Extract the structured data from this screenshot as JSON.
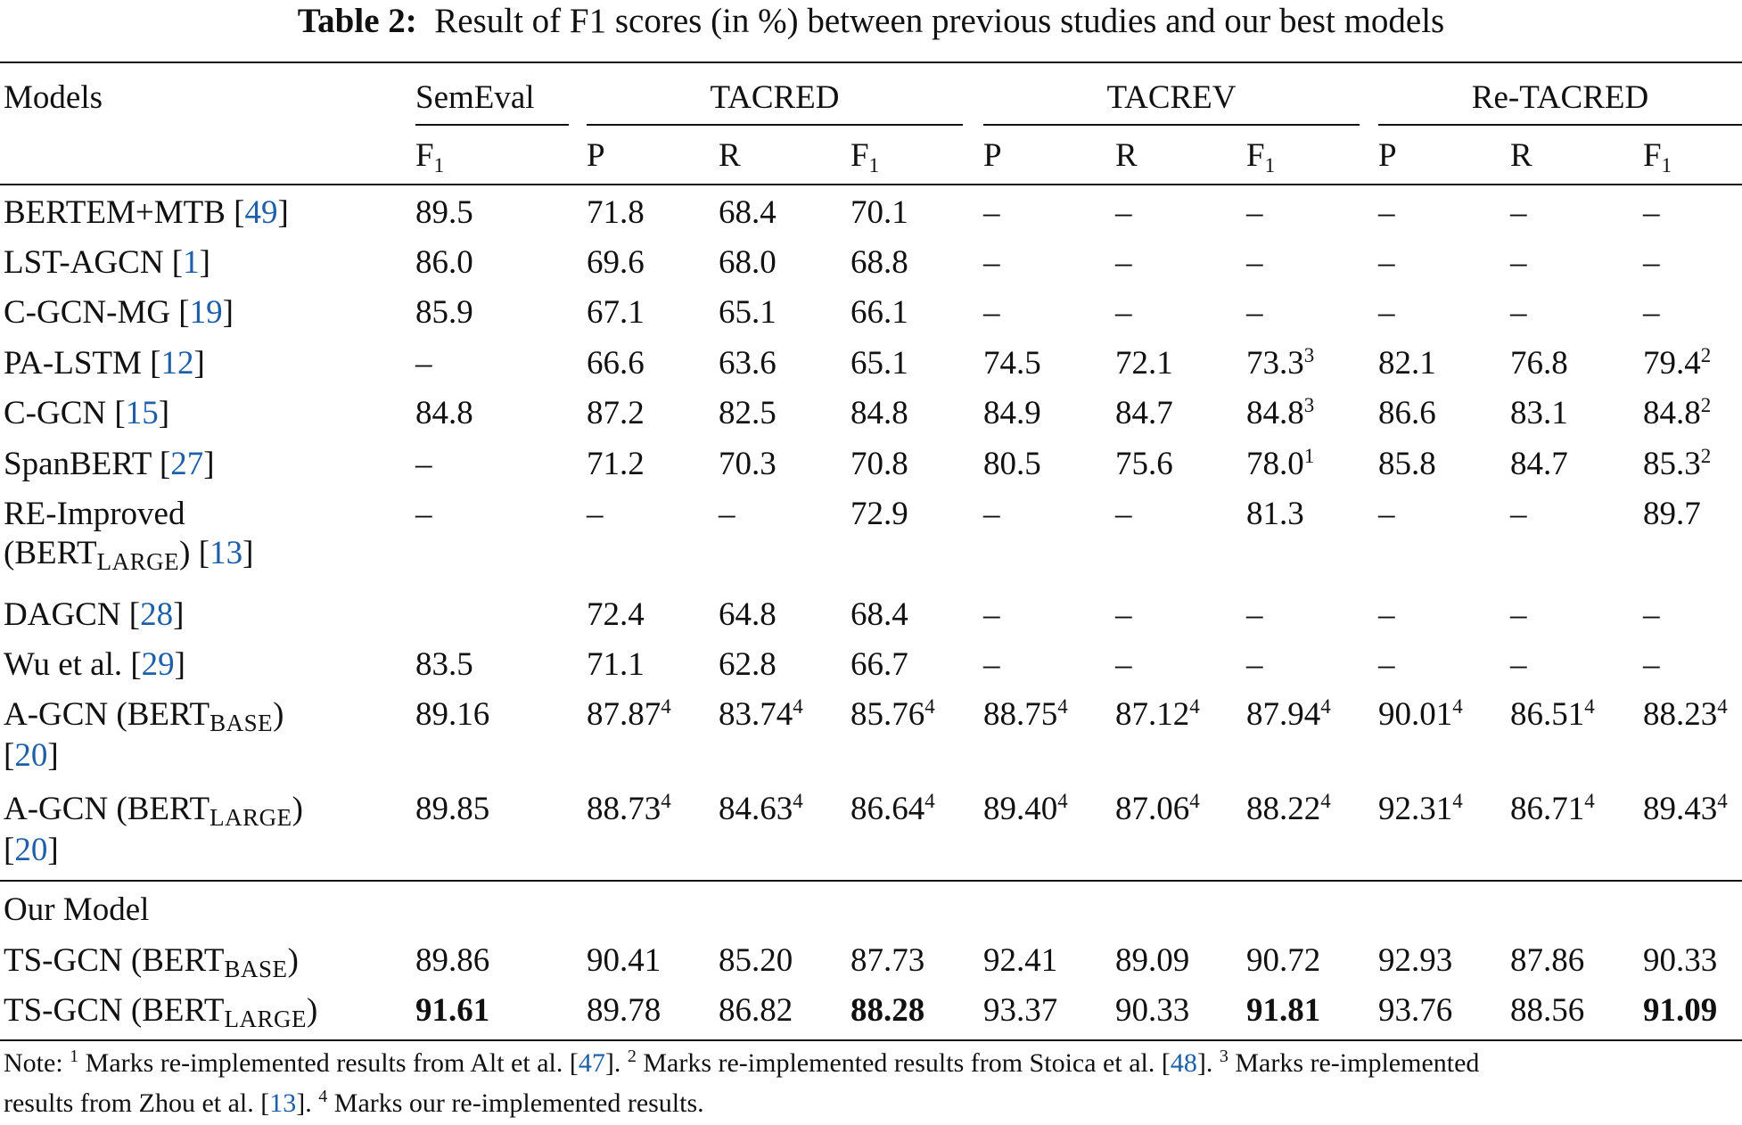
{
  "caption": {
    "label": "Table 2:",
    "text": "Result of F1 scores (in %) between previous studies and our best models"
  },
  "header": {
    "models": "Models",
    "groups": [
      "SemEval",
      "TACRED",
      "TACREV",
      "Re-TACRED"
    ],
    "metric_f": "F",
    "metric_f_sub": "1",
    "metric_p": "P",
    "metric_r": "R"
  },
  "rows": [
    {
      "name": "BERTEM+MTB [",
      "ref": "49",
      "close": "]",
      "values": [
        "89.5",
        "71.8",
        "68.4",
        "70.1",
        "–",
        "–",
        "–",
        "–",
        "–",
        "–"
      ]
    },
    {
      "name": "LST-AGCN [",
      "ref": "1",
      "close": "]",
      "values": [
        "86.0",
        "69.6",
        "68.0",
        "68.8",
        "–",
        "–",
        "–",
        "–",
        "–",
        "–"
      ]
    },
    {
      "name": "C-GCN-MG [",
      "ref": "19",
      "close": "]",
      "values": [
        "85.9",
        "67.1",
        "65.1",
        "66.1",
        "–",
        "–",
        "–",
        "–",
        "–",
        "–"
      ]
    },
    {
      "name": "PA-LSTM [",
      "ref": "12",
      "close": "]",
      "values": [
        "–",
        "66.6",
        "63.6",
        "65.1",
        "74.5",
        "72.1",
        "73.3",
        "82.1",
        "76.8",
        "79.4"
      ],
      "sups": [
        "",
        "",
        "",
        "",
        "",
        "",
        "3",
        "",
        "",
        "2"
      ]
    },
    {
      "name": "C-GCN [",
      "ref": "15",
      "close": "]",
      "values": [
        "84.8",
        "87.2",
        "82.5",
        "84.8",
        "84.9",
        "84.7",
        "84.8",
        "86.6",
        "83.1",
        "84.8"
      ],
      "sups": [
        "",
        "",
        "",
        "",
        "",
        "",
        "3",
        "",
        "",
        "2"
      ]
    },
    {
      "name": "SpanBERT [",
      "ref": "27",
      "close": "]",
      "values": [
        "–",
        "71.2",
        "70.3",
        "70.8",
        "80.5",
        "75.6",
        "78.0",
        "85.8",
        "84.7",
        "85.3"
      ],
      "sups": [
        "",
        "",
        "",
        "",
        "",
        "",
        "1",
        "",
        "",
        "2"
      ]
    },
    {
      "name": "RE-Improved",
      "line2_pre": "(BERT",
      "line2_sub": "LARGE",
      "line2_post": ") [",
      "ref": "13",
      "close": "]",
      "values": [
        "–",
        "–",
        "–",
        "72.9",
        "–",
        "–",
        "81.3",
        "–",
        "–",
        "89.7"
      ]
    },
    {
      "name": "DAGCN [",
      "ref": "28",
      "close": "]",
      "values": [
        "",
        "72.4",
        "64.8",
        "68.4",
        "–",
        "–",
        "–",
        "–",
        "–",
        "–"
      ]
    },
    {
      "name": "Wu et al. [",
      "ref": "29",
      "close": "]",
      "values": [
        "83.5",
        "71.1",
        "62.8",
        "66.7",
        "–",
        "–",
        "–",
        "–",
        "–",
        "–"
      ]
    },
    {
      "name": "A-GCN (BERT",
      "sub": "BASE",
      "post": ")",
      "line2_pre": "[",
      "ref": "20",
      "close": "]",
      "values": [
        "89.16",
        "87.87",
        "83.74",
        "85.76",
        "88.75",
        "87.12",
        "87.94",
        "90.01",
        "86.51",
        "88.23"
      ],
      "sups": [
        "",
        "4",
        "4",
        "4",
        "4",
        "4",
        "4",
        "4",
        "4",
        "4"
      ]
    },
    {
      "name": "A-GCN (BERT",
      "sub": "LARGE",
      "post": ")",
      "line2_pre": "[",
      "ref": "20",
      "close": "]",
      "values": [
        "89.85",
        "88.73",
        "84.63",
        "86.64",
        "89.40",
        "87.06",
        "88.22",
        "92.31",
        "86.71",
        "89.43"
      ],
      "sups": [
        "",
        "4",
        "4",
        "4",
        "4",
        "4",
        "4",
        "4",
        "4",
        "4"
      ]
    }
  ],
  "our_section": "Our Model",
  "our_rows": [
    {
      "name": "TS-GCN (BERT",
      "sub": "BASE",
      "post": ")",
      "values": [
        "89.86",
        "90.41",
        "85.20",
        "87.73",
        "92.41",
        "89.09",
        "90.72",
        "92.93",
        "87.86",
        "90.33"
      ],
      "bold": [
        false,
        false,
        false,
        false,
        false,
        false,
        false,
        false,
        false,
        false
      ]
    },
    {
      "name": "TS-GCN (BERT",
      "sub": "LARGE",
      "post": ")",
      "values": [
        "91.61",
        "89.78",
        "86.82",
        "88.28",
        "93.37",
        "90.33",
        "91.81",
        "93.76",
        "88.56",
        "91.09"
      ],
      "bold": [
        true,
        false,
        false,
        true,
        false,
        false,
        true,
        false,
        false,
        true
      ]
    }
  ],
  "note": {
    "prefix": "Note: ",
    "n1": "1",
    "t1": " Marks re-implemented results from Alt et al. [",
    "r1": "47",
    "e1": "]. ",
    "n2": "2",
    "t2": " Marks re-implemented results from Stoica et al. [",
    "r2": "48",
    "e2": "]. ",
    "n3": "3",
    "t3": " Marks re-implemented",
    "t3b": "results from Zhou et al. [",
    "r3": "13",
    "e3": "]. ",
    "n4": "4",
    "t4": " Marks our re-implemented results."
  }
}
